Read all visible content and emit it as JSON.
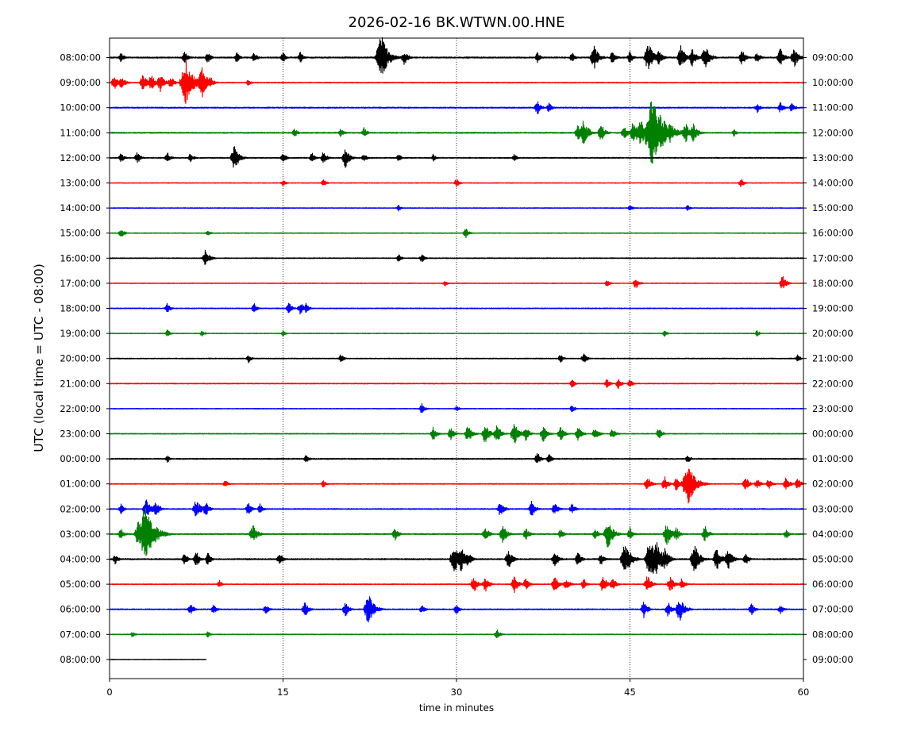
{
  "chart_data": {
    "type": "line",
    "title": "2026-02-16 BK.WTWN.00.HNE",
    "xlabel": "time in minutes",
    "ylabel": "UTC (local time = UTC - 08:00)",
    "xlim": [
      0,
      60
    ],
    "x_ticks": [
      "0",
      "15",
      "30",
      "45",
      "60"
    ],
    "grid": "vertical dotted lines at 15, 30, 45",
    "trace_colors": [
      "#000000",
      "#ff0000",
      "#0000ff",
      "#008000"
    ],
    "rows": [
      {
        "left": "08:00:00",
        "right": "09:00:00",
        "color": "#000000",
        "end_minute": 60,
        "noise": 0.9,
        "events": [
          [
            1,
            0.8
          ],
          [
            6.5,
            1
          ],
          [
            8.5,
            0.9
          ],
          [
            11,
            0.8
          ],
          [
            12.5,
            0.9
          ],
          [
            15,
            0.8
          ],
          [
            16.5,
            0.9
          ],
          [
            23.5,
            3.5
          ],
          [
            25.5,
            1.2
          ],
          [
            37,
            0.8
          ],
          [
            40,
            0.8
          ],
          [
            41.9,
            1.9
          ],
          [
            43.5,
            1.1
          ],
          [
            45,
            0.9
          ],
          [
            46.6,
            2.3
          ],
          [
            47.5,
            1.2
          ],
          [
            49.4,
            1.8
          ],
          [
            50.4,
            1.5
          ],
          [
            51.5,
            1.9
          ],
          [
            54.7,
            1.2
          ],
          [
            56,
            0.9
          ],
          [
            58,
            1.4
          ],
          [
            59.2,
            1.6
          ]
        ]
      },
      {
        "left": "09:00:00",
        "right": "10:00:00",
        "color": "#ff0000",
        "end_minute": 60,
        "noise": 0.6,
        "events": [
          [
            0.4,
            1.2
          ],
          [
            1,
            1.2
          ],
          [
            2.9,
            1.4
          ],
          [
            3.6,
            1.3
          ],
          [
            4.4,
            1.5
          ],
          [
            5.3,
            1
          ],
          [
            6.6,
            3.5
          ],
          [
            7.4,
            1
          ],
          [
            8,
            2.5
          ],
          [
            8.7,
            1.1
          ],
          [
            12,
            0.5
          ]
        ]
      },
      {
        "left": "10:00:00",
        "right": "11:00:00",
        "color": "#0000ff",
        "end_minute": 60,
        "noise": 0.8,
        "events": [
          [
            37,
            1.1
          ],
          [
            38,
            0.8
          ],
          [
            56,
            0.8
          ],
          [
            58,
            0.9
          ],
          [
            59,
            0.8
          ]
        ]
      },
      {
        "left": "11:00:00",
        "right": "12:00:00",
        "color": "#008000",
        "end_minute": 60,
        "noise": 0.8,
        "events": [
          [
            16,
            0.7
          ],
          [
            20,
            0.7
          ],
          [
            22,
            0.8
          ],
          [
            40.5,
            1.3
          ],
          [
            41,
            2
          ],
          [
            42.5,
            1.4
          ],
          [
            44.5,
            1.2
          ],
          [
            45.3,
            2.1
          ],
          [
            45.9,
            2.3
          ],
          [
            47,
            6
          ],
          [
            48.5,
            1.8
          ],
          [
            49.8,
            1.6
          ],
          [
            50.5,
            1.5
          ],
          [
            54,
            0.6
          ]
        ]
      },
      {
        "left": "12:00:00",
        "right": "13:00:00",
        "color": "#000000",
        "end_minute": 60,
        "noise": 0.7,
        "events": [
          [
            1,
            0.8
          ],
          [
            2.4,
            0.9
          ],
          [
            5,
            0.9
          ],
          [
            7,
            0.8
          ],
          [
            10.8,
            1.9
          ],
          [
            15,
            0.8
          ],
          [
            17.5,
            0.8
          ],
          [
            18.5,
            1
          ],
          [
            20.4,
            1.5
          ],
          [
            22,
            0.7
          ],
          [
            25,
            0.6
          ],
          [
            28,
            0.6
          ],
          [
            35,
            0.6
          ]
        ]
      },
      {
        "left": "13:00:00",
        "right": "14:00:00",
        "color": "#ff0000",
        "end_minute": 60,
        "noise": 0.5,
        "events": [
          [
            15,
            0.6
          ],
          [
            18.5,
            0.6
          ],
          [
            30,
            0.7
          ],
          [
            54.6,
            0.7
          ]
        ]
      },
      {
        "left": "14:00:00",
        "right": "15:00:00",
        "color": "#0000ff",
        "end_minute": 60,
        "noise": 0.5,
        "events": [
          [
            25,
            0.5
          ],
          [
            45,
            0.5
          ],
          [
            50,
            0.5
          ]
        ]
      },
      {
        "left": "15:00:00",
        "right": "16:00:00",
        "color": "#008000",
        "end_minute": 60,
        "noise": 0.5,
        "events": [
          [
            1,
            0.8
          ],
          [
            8.5,
            0.5
          ],
          [
            30.8,
            0.8
          ]
        ]
      },
      {
        "left": "16:00:00",
        "right": "17:00:00",
        "color": "#000000",
        "end_minute": 60,
        "noise": 0.6,
        "events": [
          [
            8.3,
            1.4
          ],
          [
            25,
            0.6
          ],
          [
            27,
            0.7
          ]
        ]
      },
      {
        "left": "17:00:00",
        "right": "18:00:00",
        "color": "#ff0000",
        "end_minute": 60,
        "noise": 0.5,
        "events": [
          [
            29,
            0.5
          ],
          [
            43,
            0.6
          ],
          [
            45.5,
            0.9
          ],
          [
            58.2,
            1.2
          ]
        ]
      },
      {
        "left": "18:00:00",
        "right": "19:00:00",
        "color": "#0000ff",
        "end_minute": 60,
        "noise": 0.6,
        "events": [
          [
            5,
            0.8
          ],
          [
            12.5,
            0.8
          ],
          [
            15.5,
            0.9
          ],
          [
            16.5,
            1
          ],
          [
            17,
            0.8
          ]
        ]
      },
      {
        "left": "19:00:00",
        "right": "20:00:00",
        "color": "#008000",
        "end_minute": 60,
        "noise": 0.5,
        "events": [
          [
            5,
            0.6
          ],
          [
            8,
            0.5
          ],
          [
            15,
            0.5
          ],
          [
            48,
            0.5
          ],
          [
            56,
            0.5
          ]
        ]
      },
      {
        "left": "20:00:00",
        "right": "21:00:00",
        "color": "#000000",
        "end_minute": 60,
        "noise": 0.6,
        "events": [
          [
            12,
            0.7
          ],
          [
            20,
            0.7
          ],
          [
            39,
            0.7
          ],
          [
            41,
            0.9
          ],
          [
            59.5,
            0.6
          ]
        ]
      },
      {
        "left": "21:00:00",
        "right": "22:00:00",
        "color": "#ff0000",
        "end_minute": 60,
        "noise": 0.6,
        "events": [
          [
            40,
            0.7
          ],
          [
            43,
            0.8
          ],
          [
            44,
            0.8
          ],
          [
            45,
            0.7
          ]
        ]
      },
      {
        "left": "22:00:00",
        "right": "23:00:00",
        "color": "#0000ff",
        "end_minute": 60,
        "noise": 0.5,
        "events": [
          [
            27,
            0.8
          ],
          [
            30,
            0.5
          ],
          [
            40,
            0.6
          ]
        ]
      },
      {
        "left": "23:00:00",
        "right": "00:00:00",
        "color": "#008000",
        "end_minute": 60,
        "noise": 0.6,
        "events": [
          [
            28,
            1.1
          ],
          [
            29.5,
            1
          ],
          [
            31,
            1.4
          ],
          [
            32.5,
            1.6
          ],
          [
            33.5,
            1.5
          ],
          [
            35,
            1.8
          ],
          [
            36,
            1.1
          ],
          [
            37.5,
            1.3
          ],
          [
            39,
            1.2
          ],
          [
            40.5,
            1.2
          ],
          [
            42,
            1.1
          ],
          [
            43.5,
            1
          ],
          [
            47.5,
            0.9
          ]
        ]
      },
      {
        "left": "00:00:00",
        "right": "01:00:00",
        "color": "#000000",
        "end_minute": 60,
        "noise": 0.8,
        "events": [
          [
            5,
            0.6
          ],
          [
            17,
            0.7
          ],
          [
            37,
            1
          ],
          [
            38,
            0.8
          ],
          [
            50,
            0.7
          ]
        ]
      },
      {
        "left": "01:00:00",
        "right": "02:00:00",
        "color": "#ff0000",
        "end_minute": 60,
        "noise": 0.6,
        "events": [
          [
            10,
            0.6
          ],
          [
            18.5,
            0.6
          ],
          [
            46.5,
            1.2
          ],
          [
            48,
            1.2
          ],
          [
            49,
            1.1
          ],
          [
            50,
            3.5
          ],
          [
            55,
            1.1
          ],
          [
            56,
            0.9
          ],
          [
            57,
            0.9
          ],
          [
            58.5,
            1.1
          ],
          [
            59.5,
            1
          ]
        ]
      },
      {
        "left": "02:00:00",
        "right": "03:00:00",
        "color": "#0000ff",
        "end_minute": 60,
        "noise": 0.7,
        "events": [
          [
            1,
            0.8
          ],
          [
            3.2,
            1.7
          ],
          [
            4,
            1.3
          ],
          [
            7.5,
            1.6
          ],
          [
            8.3,
            1.2
          ],
          [
            12,
            1
          ],
          [
            13,
            0.8
          ],
          [
            33.8,
            1.3
          ],
          [
            36.5,
            1.2
          ],
          [
            38.5,
            1.1
          ],
          [
            40,
            0.9
          ]
        ]
      },
      {
        "left": "03:00:00",
        "right": "04:00:00",
        "color": "#008000",
        "end_minute": 60,
        "noise": 0.8,
        "events": [
          [
            1,
            0.9
          ],
          [
            2.5,
            2
          ],
          [
            3.1,
            4.5
          ],
          [
            4,
            1.5
          ],
          [
            12.4,
            1.6
          ],
          [
            24.7,
            1
          ],
          [
            32.5,
            1.2
          ],
          [
            34,
            1.5
          ],
          [
            36,
            1
          ],
          [
            39,
            0.8
          ],
          [
            42,
            0.9
          ],
          [
            43.1,
            2.2
          ],
          [
            45,
            1
          ],
          [
            48.2,
            1.8
          ],
          [
            49,
            1.1
          ],
          [
            51.5,
            1.3
          ],
          [
            58.5,
            0.7
          ]
        ]
      },
      {
        "left": "04:00:00",
        "right": "05:00:00",
        "color": "#000000",
        "end_minute": 60,
        "noise": 0.9,
        "events": [
          [
            0.5,
            0.8
          ],
          [
            6.5,
            1
          ],
          [
            7.5,
            1.2
          ],
          [
            8.5,
            1
          ],
          [
            14.7,
            1
          ],
          [
            29.8,
            2.2
          ],
          [
            30.4,
            2
          ],
          [
            31,
            1.2
          ],
          [
            34.5,
            1.5
          ],
          [
            38.5,
            1.3
          ],
          [
            40.5,
            1.1
          ],
          [
            42.5,
            1
          ],
          [
            44.6,
            2.6
          ],
          [
            46.8,
            3.5
          ],
          [
            47.3,
            2.7
          ],
          [
            48,
            1.8
          ],
          [
            50.6,
            2.3
          ],
          [
            52.5,
            1.8
          ],
          [
            53.5,
            1.6
          ],
          [
            55,
            1
          ]
        ]
      },
      {
        "left": "05:00:00",
        "right": "06:00:00",
        "color": "#ff0000",
        "end_minute": 60,
        "noise": 0.6,
        "events": [
          [
            9.5,
            0.6
          ],
          [
            31.5,
            1.3
          ],
          [
            32.5,
            1.2
          ],
          [
            35,
            1.3
          ],
          [
            36,
            1
          ],
          [
            38.5,
            1.3
          ],
          [
            39.5,
            1
          ],
          [
            41,
            0.9
          ],
          [
            42.7,
            1.5
          ],
          [
            43.5,
            1.1
          ],
          [
            46.5,
            1.4
          ],
          [
            48.5,
            1.3
          ],
          [
            49.5,
            1
          ]
        ]
      },
      {
        "left": "06:00:00",
        "right": "07:00:00",
        "color": "#0000ff",
        "end_minute": 60,
        "noise": 0.7,
        "events": [
          [
            7,
            0.9
          ],
          [
            9,
            0.8
          ],
          [
            13.5,
            0.8
          ],
          [
            16.9,
            1.2
          ],
          [
            20.4,
            1.1
          ],
          [
            22.4,
            2.4
          ],
          [
            27,
            0.8
          ],
          [
            30,
            0.8
          ],
          [
            46.2,
            1.3
          ],
          [
            48.3,
            1.2
          ],
          [
            49.3,
            2
          ],
          [
            55.5,
            1
          ],
          [
            58,
            0.8
          ]
        ]
      },
      {
        "left": "07:00:00",
        "right": "08:00:00",
        "color": "#008000",
        "end_minute": 60,
        "noise": 0.5,
        "events": [
          [
            2,
            0.5
          ],
          [
            8.5,
            0.5
          ],
          [
            33.5,
            0.8
          ]
        ]
      },
      {
        "left": "08:00:00",
        "right": "09:00:00",
        "color": "#000000",
        "end_minute": 8.4,
        "noise": 0.4,
        "events": []
      }
    ]
  }
}
